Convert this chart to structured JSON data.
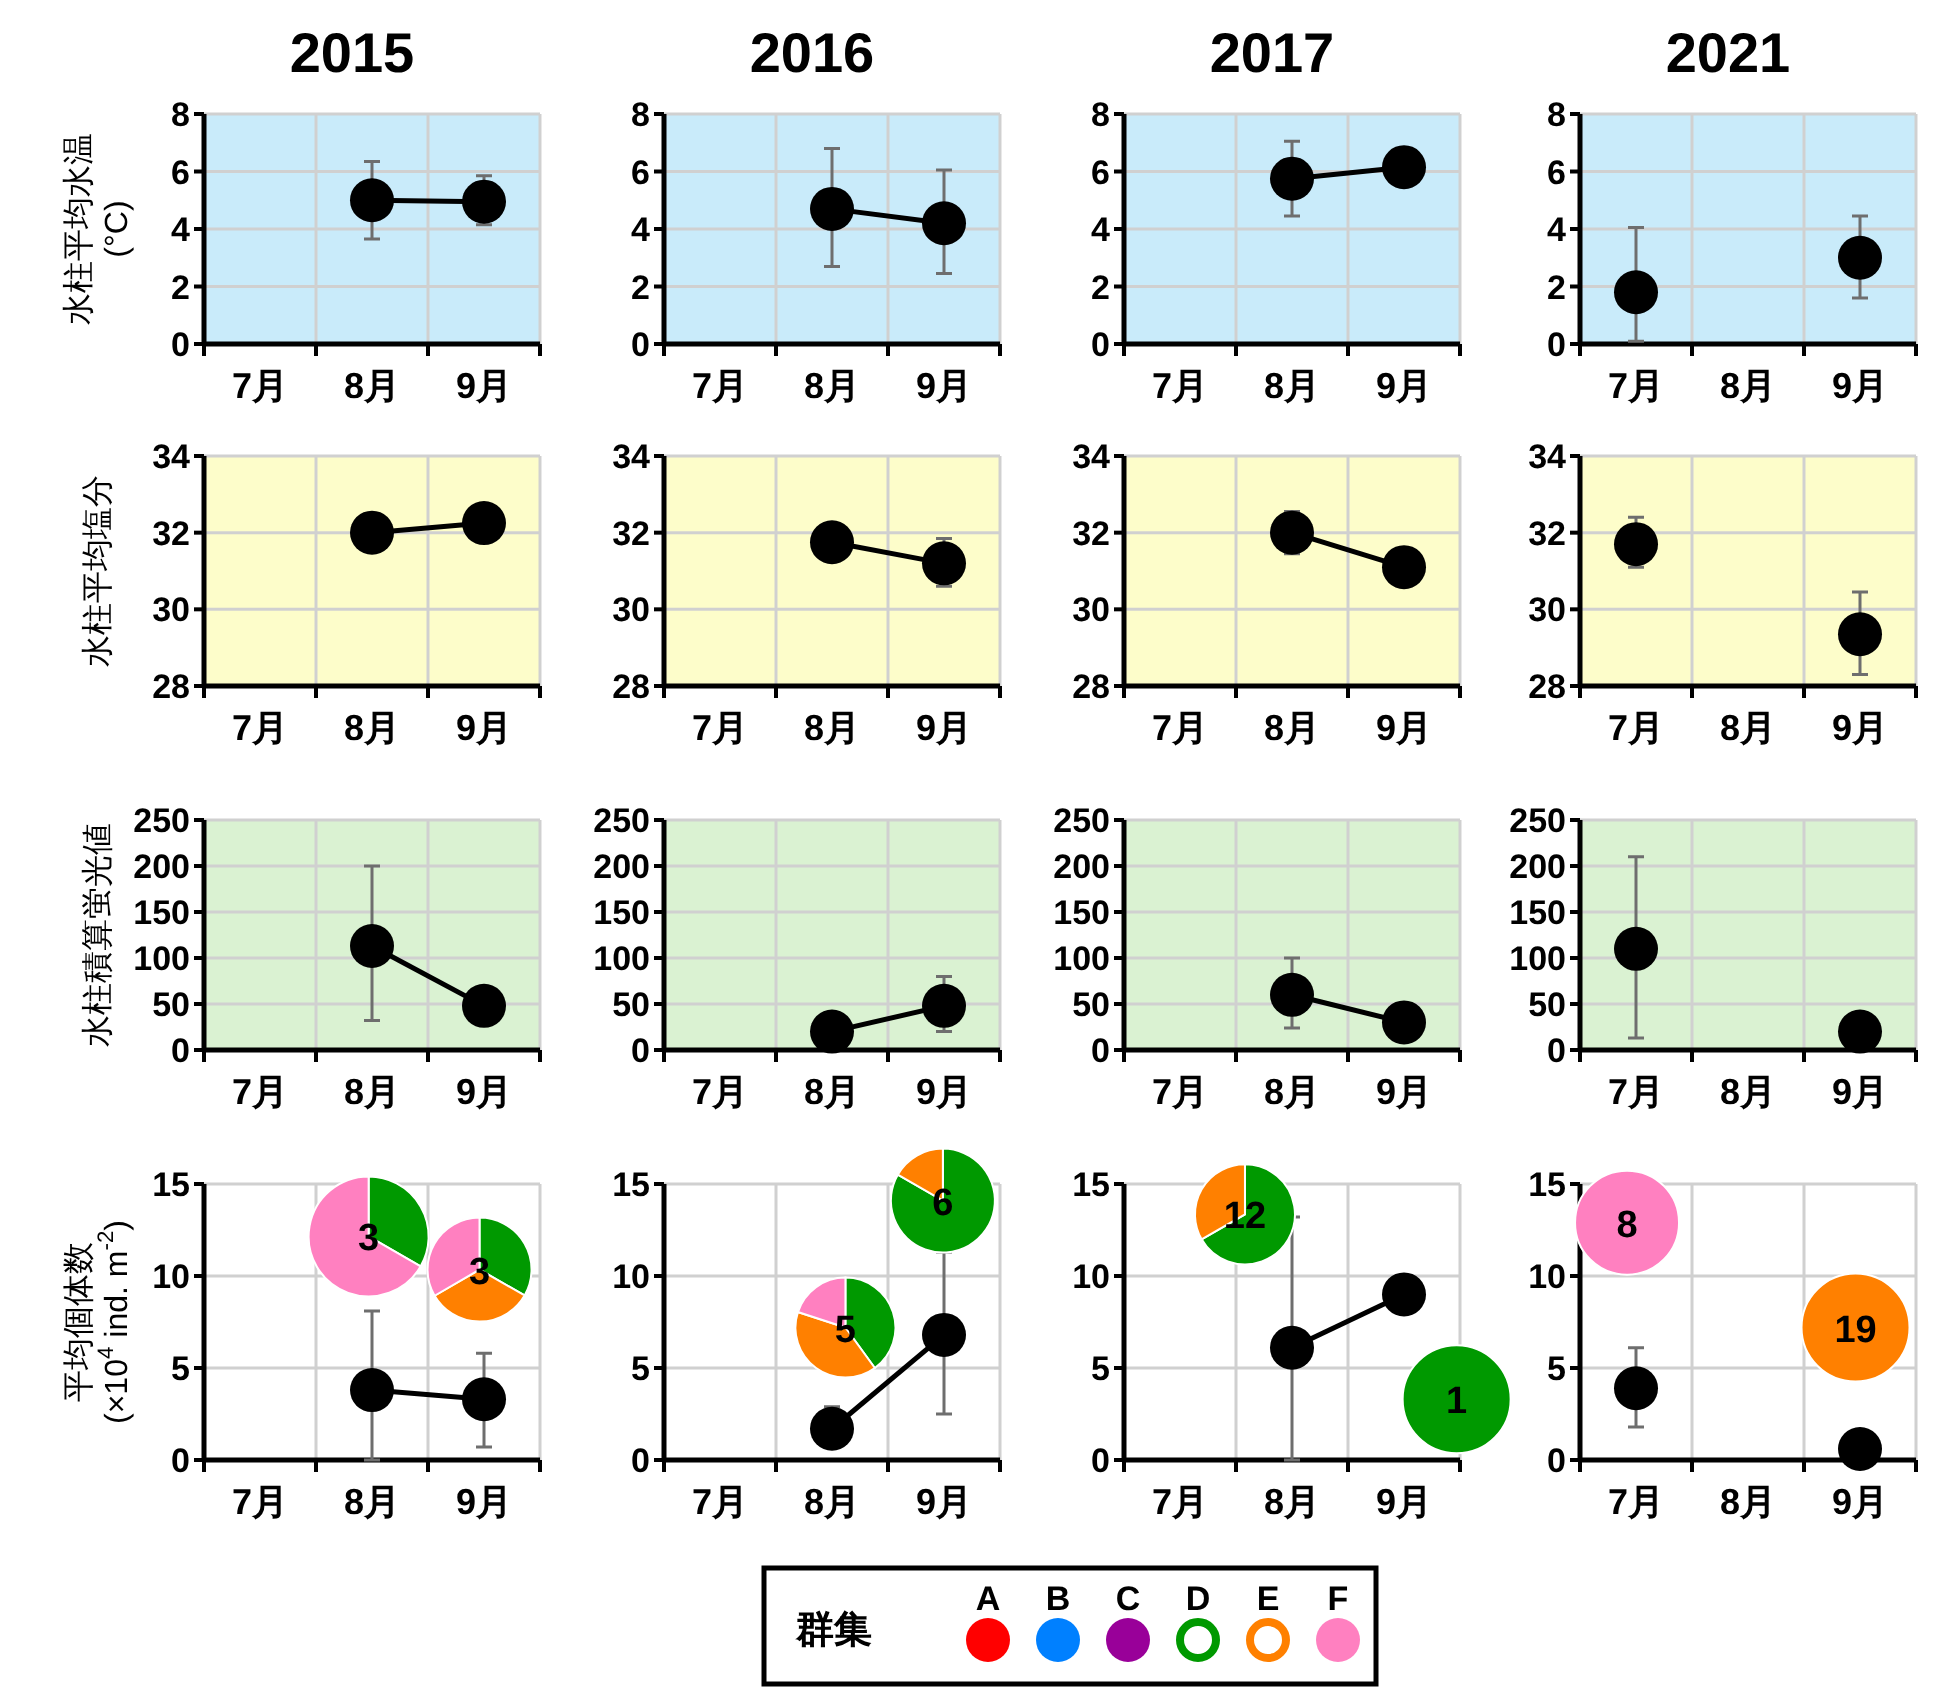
{
  "chart_data": [
    {
      "type": "line",
      "title": "2015",
      "ylabel": "水柱平均水温 (°C)",
      "categories": [
        "7月",
        "8月",
        "9月"
      ],
      "series": [
        {
          "color": "#000000",
          "values": [
            null,
            5.0,
            4.95
          ],
          "errors": [
            null,
            [
              3.65,
              6.35
            ],
            [
              4.15,
              5.85
            ]
          ]
        }
      ],
      "ylim": [
        0,
        8
      ],
      "yticks": [
        0,
        2,
        4,
        6,
        8
      ],
      "grid": true,
      "marker": "circle",
      "line_style": "solid"
    },
    {
      "type": "line",
      "title": "2016",
      "categories": [
        "7月",
        "8月",
        "9月"
      ],
      "series": [
        {
          "color": "#000000",
          "values": [
            null,
            4.7,
            4.2
          ],
          "errors": [
            null,
            [
              2.7,
              6.8
            ],
            [
              2.45,
              6.05
            ]
          ]
        }
      ],
      "ylim": [
        0,
        8
      ],
      "yticks": [
        0,
        2,
        4,
        6,
        8
      ],
      "grid": true,
      "marker": "circle",
      "line_style": "solid"
    },
    {
      "type": "line",
      "title": "2017",
      "categories": [
        "7月",
        "8月",
        "9月"
      ],
      "series": [
        {
          "color": "#000000",
          "values": [
            null,
            5.75,
            6.15
          ],
          "errors": [
            null,
            [
              4.45,
              7.05
            ],
            null
          ]
        }
      ],
      "ylim": [
        0,
        8
      ],
      "yticks": [
        0,
        2,
        4,
        6,
        8
      ],
      "grid": true,
      "marker": "circle",
      "line_style": "solid"
    },
    {
      "type": "line",
      "title": "2021",
      "categories": [
        "7月",
        "8月",
        "9月"
      ],
      "series": [
        {
          "type": "scatter",
          "color": "#000000",
          "x": [
            "7月",
            "9月"
          ],
          "values": [
            1.8,
            3.0
          ],
          "errors": [
            [
              0.1,
              4.05
            ],
            [
              1.6,
              4.45
            ]
          ]
        }
      ],
      "ylim": [
        0,
        8
      ],
      "yticks": [
        0,
        2,
        4,
        6,
        8
      ],
      "grid": true,
      "marker": "circle",
      "line_style": "solid"
    },
    {
      "type": "line",
      "ylabel": "水柱平均塩分",
      "categories": [
        "7月",
        "8月",
        "9月"
      ],
      "series": [
        {
          "color": "#000000",
          "values": [
            null,
            32.0,
            32.25
          ]
        }
      ],
      "ylim": [
        28,
        34
      ],
      "yticks": [
        28,
        30,
        32,
        34
      ],
      "grid": true,
      "marker": "circle",
      "line_style": "solid"
    },
    {
      "type": "line",
      "categories": [
        "7月",
        "8月",
        "9月"
      ],
      "series": [
        {
          "color": "#000000",
          "values": [
            null,
            31.75,
            31.2
          ],
          "errors": [
            null,
            null,
            [
              30.6,
              31.85
            ]
          ]
        }
      ],
      "ylim": [
        28,
        34
      ],
      "yticks": [
        28,
        30,
        32,
        34
      ],
      "grid": true,
      "marker": "circle",
      "line_style": "solid"
    },
    {
      "type": "line",
      "categories": [
        "7月",
        "8月",
        "9月"
      ],
      "series": [
        {
          "color": "#000000",
          "values": [
            null,
            32.0,
            31.1
          ],
          "errors": [
            null,
            [
              31.45,
              32.55
            ],
            null
          ]
        }
      ],
      "ylim": [
        28,
        34
      ],
      "yticks": [
        28,
        30,
        32,
        34
      ],
      "grid": true,
      "marker": "circle",
      "line_style": "solid"
    },
    {
      "type": "line",
      "categories": [
        "7月",
        "8月",
        "9月"
      ],
      "series": [
        {
          "type": "scatter",
          "color": "#000000",
          "x": [
            "7月",
            "9月"
          ],
          "values": [
            31.7,
            29.35
          ],
          "errors": [
            [
              31.1,
              32.4
            ],
            [
              28.3,
              30.45
            ]
          ]
        }
      ],
      "ylim": [
        28,
        34
      ],
      "yticks": [
        28,
        30,
        32,
        34
      ],
      "grid": true,
      "marker": "circle",
      "line_style": "solid"
    },
    {
      "type": "line",
      "ylabel": "水柱積算蛍光値",
      "categories": [
        "7月",
        "8月",
        "9月"
      ],
      "series": [
        {
          "color": "#000000",
          "values": [
            null,
            113,
            48
          ],
          "errors": [
            null,
            [
              32,
              200
            ],
            null
          ]
        }
      ],
      "ylim": [
        0,
        250
      ],
      "yticks": [
        0,
        50,
        100,
        150,
        200,
        250
      ],
      "grid": true,
      "marker": "circle",
      "line_style": "solid"
    },
    {
      "type": "line",
      "categories": [
        "7月",
        "8月",
        "9月"
      ],
      "series": [
        {
          "color": "#000000",
          "values": [
            null,
            20,
            48
          ],
          "errors": [
            null,
            null,
            [
              20,
              80
            ]
          ]
        }
      ],
      "ylim": [
        0,
        250
      ],
      "yticks": [
        0,
        50,
        100,
        150,
        200,
        250
      ],
      "grid": true,
      "marker": "circle",
      "line_style": "solid"
    },
    {
      "type": "line",
      "categories": [
        "7月",
        "8月",
        "9月"
      ],
      "series": [
        {
          "color": "#000000",
          "values": [
            null,
            60,
            30
          ],
          "errors": [
            null,
            [
              24,
              100
            ],
            null
          ]
        }
      ],
      "ylim": [
        0,
        250
      ],
      "yticks": [
        0,
        50,
        100,
        150,
        200,
        250
      ],
      "grid": true,
      "marker": "circle",
      "line_style": "solid"
    },
    {
      "type": "line",
      "categories": [
        "7月",
        "8月",
        "9月"
      ],
      "series": [
        {
          "type": "scatter",
          "color": "#000000",
          "x": [
            "7月",
            "9月"
          ],
          "values": [
            110,
            20
          ],
          "errors": [
            [
              13,
              210
            ],
            null
          ]
        }
      ],
      "ylim": [
        0,
        250
      ],
      "yticks": [
        0,
        50,
        100,
        150,
        200,
        250
      ],
      "grid": true,
      "marker": "circle",
      "line_style": "solid"
    },
    {
      "type": "line",
      "ylabel": "平均個体数 (×10$^{4}$ ind. m$^{-2}$)",
      "categories": [
        "7月",
        "8月",
        "9月"
      ],
      "series": [
        {
          "color": "#000000",
          "values": [
            null,
            3.8,
            3.3
          ],
          "errors": [
            null,
            [
              0,
              8.1
            ],
            [
              0.7,
              5.8
            ]
          ]
        }
      ],
      "ylim": [
        0,
        15
      ],
      "yticks": [
        0,
        5,
        10,
        15
      ],
      "grid": true,
      "marker": "circle",
      "line_style": "solid"
    },
    {
      "type": "line",
      "categories": [
        "7月",
        "8月",
        "9月"
      ],
      "series": [
        {
          "color": "#000000",
          "values": [
            null,
            1.7,
            6.8
          ],
          "errors": [
            null,
            [
              0.8,
              2.9
            ],
            [
              2.5,
              11.3
            ]
          ]
        }
      ],
      "ylim": [
        0,
        15
      ],
      "yticks": [
        0,
        5,
        10,
        15
      ],
      "grid": true,
      "marker": "circle",
      "line_style": "solid"
    },
    {
      "type": "line",
      "categories": [
        "7月",
        "8月",
        "9月"
      ],
      "series": [
        {
          "color": "#000000",
          "values": [
            null,
            6.1,
            9.0
          ],
          "errors": [
            null,
            [
              0,
              13.2
            ],
            null
          ]
        }
      ],
      "ylim": [
        0,
        15
      ],
      "yticks": [
        0,
        5,
        10,
        15
      ],
      "grid": true,
      "marker": "circle",
      "line_style": "solid"
    },
    {
      "type": "line",
      "categories": [
        "7月",
        "8月",
        "9月"
      ],
      "series": [
        {
          "type": "scatter",
          "color": "#000000",
          "x": [
            "7月",
            "9月"
          ],
          "values": [
            3.9,
            0.6
          ],
          "errors": [
            [
              1.8,
              6.1
            ],
            null
          ]
        }
      ],
      "ylim": [
        0,
        15
      ],
      "yticks": [
        0,
        5,
        10,
        15
      ],
      "grid": true,
      "marker": "circle",
      "line_style": "solid"
    },
    {
      "type": "pie",
      "categories": [
        null,
        null
      ],
      "values": [
        33.3,
        66.7
      ],
      "colors": [
        "#009900",
        "#ff80c0"
      ],
      "annotations": [
        "3"
      ]
    },
    {
      "type": "pie",
      "categories": [
        null,
        null,
        null
      ],
      "values": [
        33.3,
        33.3,
        33.4
      ],
      "colors": [
        "#009900",
        "#ff8000",
        "#ff80c0"
      ],
      "annotations": [
        "3"
      ]
    },
    {
      "type": "pie",
      "categories": [
        null,
        null,
        null
      ],
      "values": [
        40,
        40,
        20
      ],
      "colors": [
        "#009900",
        "#ff8000",
        "#ff80c0"
      ],
      "annotations": [
        "5"
      ]
    },
    {
      "type": "pie",
      "categories": [
        null,
        null
      ],
      "values": [
        83.3,
        16.7
      ],
      "colors": [
        "#009900",
        "#ff8000"
      ],
      "annotations": [
        "6"
      ]
    },
    {
      "type": "pie",
      "categories": [
        null,
        null
      ],
      "values": [
        66.7,
        33.3
      ],
      "colors": [
        "#009900",
        "#ff8000"
      ],
      "annotations": [
        "12"
      ]
    },
    {
      "type": "pie",
      "categories": [
        null
      ],
      "values": [
        100
      ],
      "colors": [
        "#009900"
      ],
      "annotations": [
        "1"
      ]
    },
    {
      "type": "pie",
      "categories": [
        null
      ],
      "values": [
        100
      ],
      "colors": [
        "#ff80c0"
      ],
      "annotations": [
        "8"
      ]
    },
    {
      "type": "pie",
      "categories": [
        null
      ],
      "values": [
        100
      ],
      "colors": [
        "#ff8000"
      ],
      "annotations": [
        "19"
      ]
    },
    {
      "type": "other",
      "legend_title": "群集",
      "categories": [
        "A",
        "B",
        "C",
        "D",
        "E",
        "F"
      ],
      "colors": [
        "#ff0000",
        "#0080ff",
        "#990099",
        "#009900",
        "#ff8000",
        "#ff80c0"
      ]
    }
  ]
}
